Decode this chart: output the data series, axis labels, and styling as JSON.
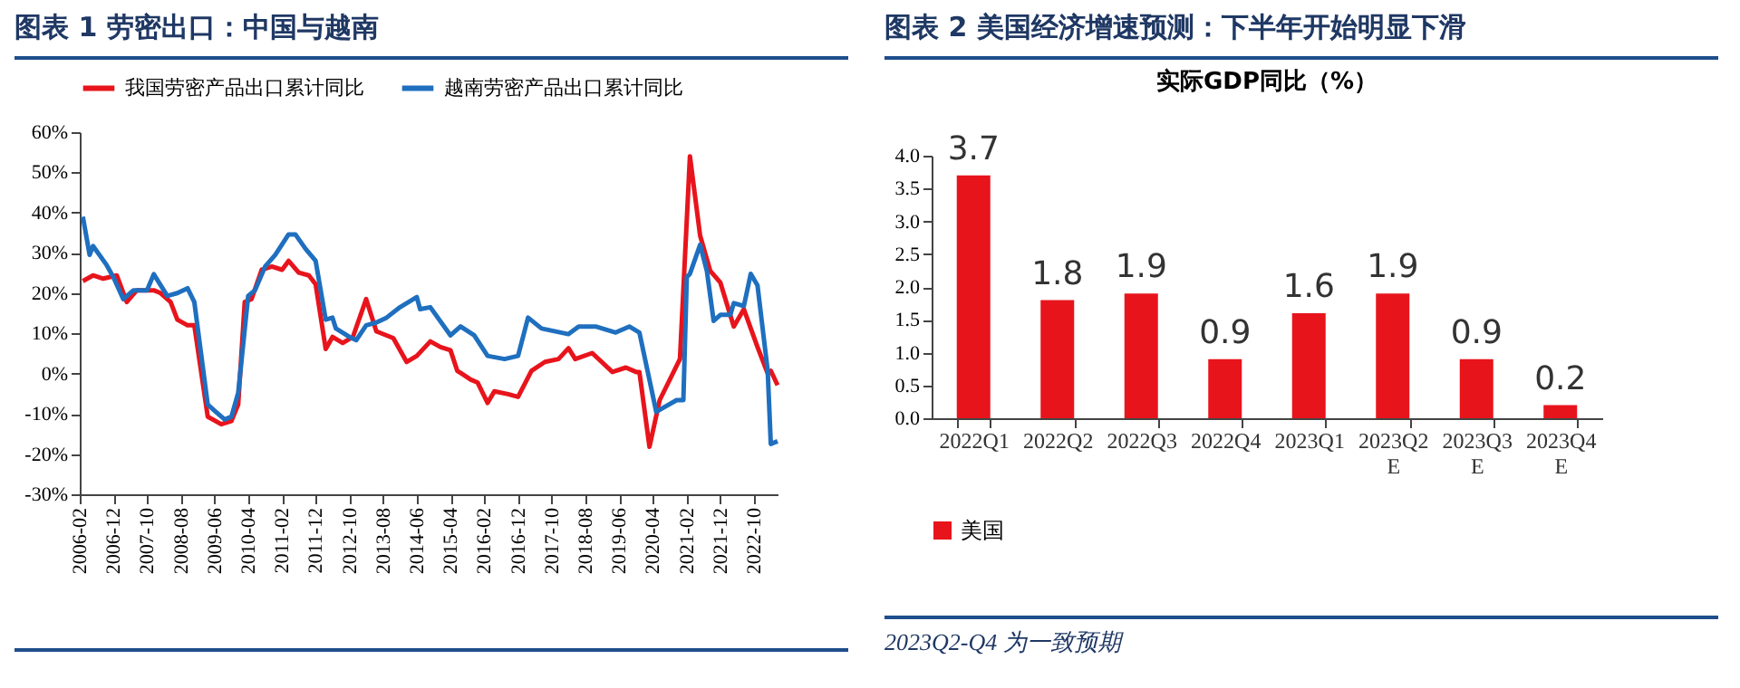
{
  "chart_data": [
    {
      "type": "line",
      "title": "图表 1   劳密出口：中国与越南",
      "legend": "top",
      "xlim": [
        "2006-02",
        "2023-05"
      ],
      "xticks": [
        "2006-02",
        "2006-12",
        "2007-10",
        "2008-08",
        "2009-06",
        "2010-04",
        "2011-02",
        "2011-12",
        "2012-10",
        "2013-08",
        "2014-06",
        "2015-04",
        "2016-02",
        "2016-12",
        "2017-10",
        "2018-08",
        "2019-06",
        "2020-04",
        "2021-02",
        "2021-12",
        "2022-10"
      ],
      "ylim": [
        -30,
        60
      ],
      "yticks": [
        {
          "value": -30,
          "label": "-30%"
        },
        {
          "value": -20,
          "label": "-20%"
        },
        {
          "value": -10,
          "label": "-10%"
        },
        {
          "value": 0,
          "label": "0%"
        },
        {
          "value": 10,
          "label": "10%"
        },
        {
          "value": 20,
          "label": "20%"
        },
        {
          "value": 30,
          "label": "30%"
        },
        {
          "value": 40,
          "label": "40%"
        },
        {
          "value": 50,
          "label": "50%"
        },
        {
          "value": 60,
          "label": "60%"
        }
      ],
      "series": [
        {
          "name": "我国劳密产品出口累计同比",
          "color": "#e8141c",
          "x": [
            "2006-03",
            "2006-06",
            "2006-09",
            "2007-01",
            "2007-04",
            "2007-07",
            "2007-12",
            "2008-02",
            "2008-05",
            "2008-07",
            "2008-10",
            "2008-12",
            "2009-04",
            "2009-08",
            "2009-11",
            "2010-01",
            "2010-03",
            "2010-05",
            "2010-08",
            "2010-11",
            "2011-02",
            "2011-04",
            "2011-07",
            "2011-10",
            "2011-12",
            "2012-03",
            "2012-05",
            "2012-08",
            "2012-11",
            "2013-03",
            "2013-06",
            "2013-11",
            "2014-03",
            "2014-06",
            "2014-10",
            "2015-01",
            "2015-04",
            "2015-06",
            "2015-10",
            "2015-12",
            "2016-03",
            "2016-05",
            "2016-09",
            "2016-12",
            "2017-04",
            "2017-08",
            "2017-12",
            "2018-03",
            "2018-05",
            "2018-10",
            "2019-04",
            "2019-08",
            "2019-11",
            "2019-12",
            "2020-03",
            "2020-06",
            "2020-12",
            "2021-03",
            "2021-06",
            "2021-09",
            "2021-12",
            "2022-04",
            "2022-07",
            "2022-11",
            "2023-02",
            "2023-03",
            "2023-05"
          ],
          "values": [
            23,
            24.4,
            23.6,
            24.4,
            17.8,
            20.7,
            20.7,
            20,
            17.8,
            13.4,
            12,
            12,
            -10.7,
            -12.6,
            -11.8,
            -7.7,
            17.8,
            18.5,
            25.8,
            26.6,
            25.8,
            28,
            25.1,
            24.4,
            22.2,
            6.1,
            9.1,
            7.6,
            9.1,
            18.5,
            10.5,
            8.8,
            2.9,
            4.4,
            8,
            6.6,
            5.8,
            0.7,
            -1.5,
            -2.2,
            -7.3,
            -4.4,
            -5.1,
            -5.8,
            0.7,
            2.9,
            3.6,
            6.3,
            3.6,
            5.1,
            0.4,
            1.5,
            0.4,
            0.4,
            -18.2,
            -6.6,
            3.6,
            54,
            34.3,
            25.5,
            22.6,
            11.7,
            16,
            6.6,
            0,
            0.7,
            -2.9
          ]
        },
        {
          "name": "越南劳密产品出口累计同比",
          "color": "#1f6fbf",
          "x": [
            "2006-03",
            "2006-05",
            "2006-06",
            "2006-10",
            "2006-12",
            "2007-03",
            "2007-06",
            "2007-10",
            "2007-12",
            "2008-04",
            "2008-07",
            "2008-10",
            "2008-12",
            "2009-04",
            "2009-06",
            "2009-09",
            "2009-11",
            "2010-01",
            "2010-04",
            "2010-06",
            "2010-09",
            "2010-12",
            "2011-04",
            "2011-06",
            "2011-09",
            "2011-12",
            "2012-03",
            "2012-05",
            "2012-06",
            "2012-10",
            "2012-12",
            "2013-03",
            "2013-06",
            "2013-09",
            "2014-01",
            "2014-06",
            "2014-07",
            "2014-10",
            "2015-04",
            "2015-07",
            "2015-11",
            "2016-03",
            "2016-08",
            "2016-12",
            "2017-03",
            "2017-07",
            "2018-03",
            "2018-06",
            "2018-11",
            "2019-05",
            "2019-09",
            "2019-12",
            "2020-05",
            "2020-11",
            "2021-01",
            "2021-02",
            "2021-03",
            "2021-06",
            "2021-08",
            "2021-10",
            "2021-12",
            "2022-03",
            "2022-04",
            "2022-07",
            "2022-09",
            "2022-11",
            "2023-02",
            "2023-03",
            "2023-05"
          ],
          "values": [
            39,
            29.5,
            31.7,
            27,
            24,
            18.5,
            20.7,
            20.7,
            24.7,
            19.3,
            20,
            21.2,
            17.8,
            -7.7,
            -9.2,
            -11.4,
            -10.7,
            -4.8,
            19.3,
            20.7,
            26.6,
            29.5,
            34.6,
            34.6,
            31,
            28,
            13.4,
            13.9,
            11.2,
            9.1,
            8.3,
            12,
            12.7,
            13.9,
            16.5,
            19,
            16,
            16.5,
            9.5,
            11.7,
            9.5,
            4.4,
            3.6,
            4.4,
            13.9,
            11.2,
            9.8,
            11.7,
            11.7,
            10.2,
            11.7,
            10.2,
            -9.5,
            -6.6,
            -6.6,
            24,
            24.8,
            32,
            25.5,
            13.1,
            14.6,
            14.6,
            17.5,
            16.8,
            24.8,
            21.9,
            0.7,
            -17.5,
            -16.8
          ]
        }
      ]
    },
    {
      "type": "bar",
      "title": "图表 2   美国经济增速预测：下半年开始明显下滑",
      "subtitle": "实际GDP同比（%）",
      "legend": "bottom",
      "data_labels": true,
      "categories": [
        "2022Q1",
        "2022Q2",
        "2022Q3",
        "2022Q4",
        "2023Q1",
        "2023Q2\nE",
        "2023Q3\nE",
        "2023Q4\nE"
      ],
      "ylim": [
        0,
        4
      ],
      "yticks": [
        {
          "value": 0,
          "label": "0.0"
        },
        {
          "value": 0.5,
          "label": "0.5"
        },
        {
          "value": 1,
          "label": "1.0"
        },
        {
          "value": 1.5,
          "label": "1.5"
        },
        {
          "value": 2,
          "label": "2.0"
        },
        {
          "value": 2.5,
          "label": "2.5"
        },
        {
          "value": 3,
          "label": "3.0"
        },
        {
          "value": 3.5,
          "label": "3.5"
        },
        {
          "value": 4,
          "label": "4.0"
        }
      ],
      "series": [
        {
          "name": "美国",
          "color": "#e8141c",
          "values": [
            3.7,
            1.8,
            1.9,
            0.9,
            1.6,
            1.9,
            0.9,
            0.2
          ]
        }
      ],
      "annotations": [
        "2023Q2-Q4 为一致预期"
      ]
    }
  ]
}
